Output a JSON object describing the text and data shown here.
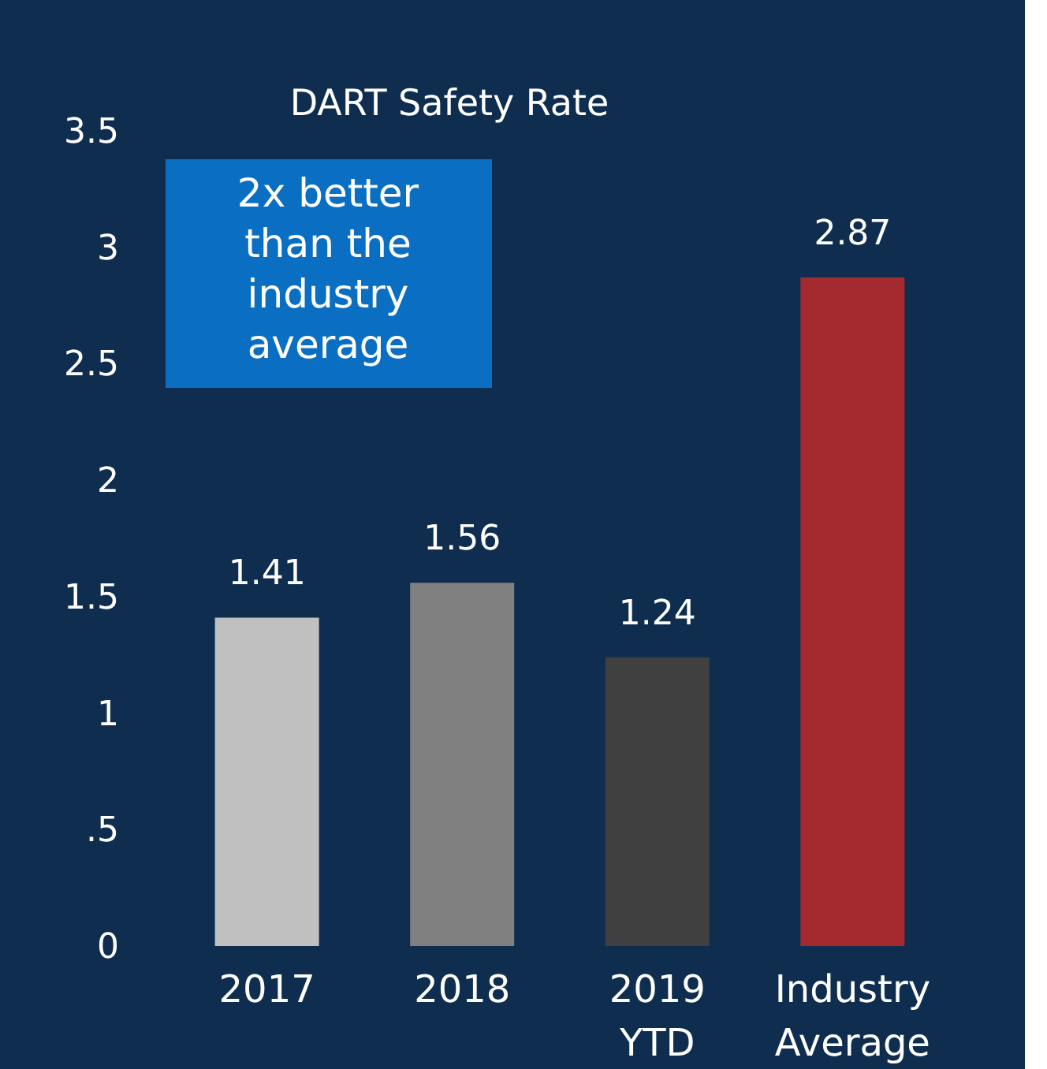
{
  "chart_data": {
    "type": "bar",
    "title": "DART Safety Rate",
    "categories": [
      "2017",
      "2018",
      "2019 YTD",
      "Industry Average"
    ],
    "values": [
      1.41,
      1.56,
      1.24,
      2.87
    ],
    "colors": [
      "#c0c0c0",
      "#808080",
      "#404040",
      "#a52a2f"
    ],
    "ylim": [
      0,
      3.5
    ],
    "yticks": [
      0,
      {
        "value": 0.5,
        "label": ".5"
      },
      1,
      1.5,
      2,
      2.5,
      3,
      3.5
    ],
    "data_labels": true,
    "grid": false,
    "annotations": [
      "2x better than the industry average"
    ]
  }
}
